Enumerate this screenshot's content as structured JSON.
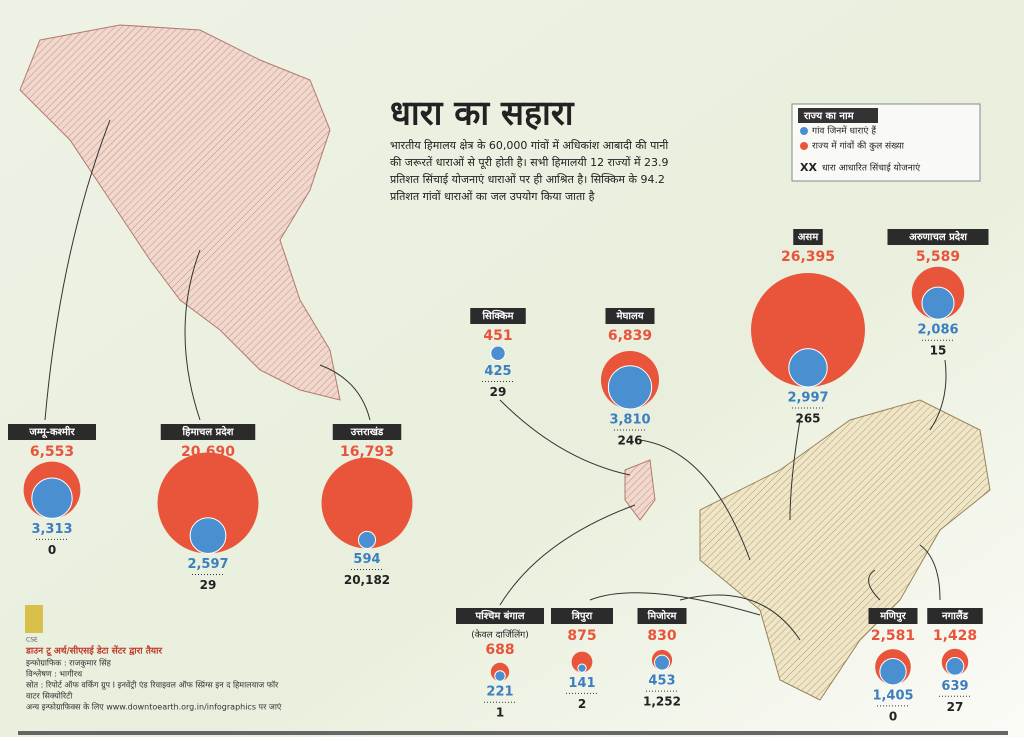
{
  "header": {
    "title": "धारा का सहारा",
    "description": [
      "भारतीय हिमालय क्षेत्र के 60,000 गांवों में अधिकांश आबादी की पानी",
      "की जरूरतें धाराओं से पूरी होती है। सभी हिमालयी 12 राज्यों में 23.9",
      "प्रतिशत सिंचाई योजनाएं धाराओं पर ही आश्रित है। सिक्किम के 94.2",
      "प्रतिशत गांवों धाराओं का जल उपयोग किया जाता है"
    ]
  },
  "legend": {
    "title": "राज्य का नाम",
    "blue": "गांव जिनमें धाराएं हैं",
    "red": "राज्य में गांवों की कुल संख्या",
    "xx": "XX",
    "schemes": "धारा आधारित सिंचाई योजनाएं"
  },
  "states": [
    {
      "name": "जम्मू-कश्मीर",
      "total": {
        "value": 6553,
        "label": "6,553"
      },
      "spring": {
        "value": 3313,
        "label": "3,313"
      },
      "schemes": 0
    },
    {
      "name": "हिमाचल प्रदेश",
      "total": {
        "value": 20690,
        "label": "20,690"
      },
      "spring": {
        "value": 2597,
        "label": "2,597"
      },
      "schemes": 29
    },
    {
      "name": "उत्तराखंड",
      "total": {
        "value": 16793,
        "label": "16,793"
      },
      "spring": 594,
      "schemes": {
        "value": 20182,
        "label": "20,182"
      }
    },
    {
      "name": "सिक्किम",
      "total": 451,
      "spring": 425,
      "schemes": 29
    },
    {
      "name": "मेघालय",
      "total": {
        "value": 6839,
        "label": "6,839"
      },
      "spring": {
        "value": 3810,
        "label": "3,810"
      },
      "schemes": 246
    },
    {
      "name": "असम",
      "total": {
        "value": 26395,
        "label": "26,395"
      },
      "spring": {
        "value": 2997,
        "label": "2,997"
      },
      "schemes": 265
    },
    {
      "name": "अरुणाचल प्रदेश",
      "total": {
        "value": 5589,
        "label": "5,589"
      },
      "spring": {
        "value": 2086,
        "label": "2,086"
      },
      "schemes": 15
    },
    {
      "name": "पश्चिम बंगाल",
      "note": "(केवल दार्जिलिंग)",
      "total": 688,
      "spring": 221,
      "schemes": 1
    },
    {
      "name": "त्रिपुरा",
      "total": 875,
      "spring": 141,
      "schemes": 2
    },
    {
      "name": "मिजोरम",
      "total": 830,
      "spring": 453,
      "schemes": {
        "value": 1252,
        "label": "1,252"
      }
    },
    {
      "name": "मणिपुर",
      "total": {
        "value": 2581,
        "label": "2,581"
      },
      "spring": {
        "value": 1405,
        "label": "1,405"
      },
      "schemes": 0
    },
    {
      "name": "नगालैंड",
      "total": {
        "value": 1428,
        "label": "1,428"
      },
      "spring": 639,
      "schemes": 27
    }
  ],
  "credits": {
    "logo": "CSE",
    "made_by": "डाउन टू अर्थ/सीएसई डेटा सेंटर द्वारा तैयार",
    "lines": [
      "इन्फोग्राफिक : राजकुमार सिंह",
      "विश्लेषण : भागीरथ",
      "स्रोत : रिपोर्ट ऑफ वर्किंग ग्रुप I इनवेंट्री एंड रिवाइवल ऑफ स्प्रिंग्स इन द हिमालयाज फॉर",
      "वाटर सिक्योरिटी",
      "अन्य इन्फोग्राफिक्स के लिए www.downtoearth.org.in/infographics पर जाएं"
    ]
  }
}
